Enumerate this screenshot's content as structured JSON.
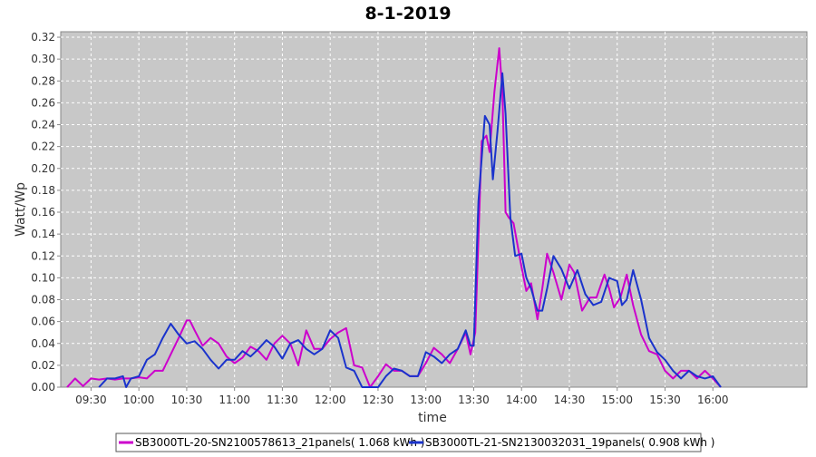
{
  "chart_data": {
    "type": "line",
    "title": "8-1-2019",
    "xlabel": "time",
    "ylabel": "Watt/Wp",
    "x_ticks": [
      "09:30",
      "10:00",
      "10:30",
      "11:00",
      "11:30",
      "12:00",
      "12:30",
      "13:00",
      "13:30",
      "14:00",
      "14:30",
      "15:00",
      "15:30",
      "16:00"
    ],
    "y_ticks": [
      "0.00",
      "0.02",
      "0.04",
      "0.06",
      "0.08",
      "0.10",
      "0.12",
      "0.14",
      "0.16",
      "0.18",
      "0.20",
      "0.22",
      "0.24",
      "0.26",
      "0.28",
      "0.30",
      "0.32"
    ],
    "ylim": [
      0,
      0.325
    ],
    "xlim": [
      "09:11",
      "16:59"
    ],
    "grid": true,
    "legend_position": "bottom",
    "background_color": "#c8c8c8",
    "series": [
      {
        "name": "SB3000TL-20-SN2100578613_21panels( 1.068 kWh )",
        "color": "#cc00cc",
        "points": [
          [
            "09:15",
            0.0
          ],
          [
            "09:20",
            0.008
          ],
          [
            "09:25",
            0.001
          ],
          [
            "09:30",
            0.008
          ],
          [
            "09:35",
            0.007
          ],
          [
            "09:40",
            0.008
          ],
          [
            "09:45",
            0.007
          ],
          [
            "09:50",
            0.008
          ],
          [
            "09:55",
            0.008
          ],
          [
            "10:00",
            0.009
          ],
          [
            "10:05",
            0.008
          ],
          [
            "10:10",
            0.015
          ],
          [
            "10:15",
            0.015
          ],
          [
            "10:20",
            0.03
          ],
          [
            "10:25",
            0.045
          ],
          [
            "10:30",
            0.061
          ],
          [
            "10:32",
            0.061
          ],
          [
            "10:35",
            0.052
          ],
          [
            "10:40",
            0.038
          ],
          [
            "10:45",
            0.045
          ],
          [
            "10:50",
            0.04
          ],
          [
            "10:55",
            0.028
          ],
          [
            "11:00",
            0.022
          ],
          [
            "11:05",
            0.027
          ],
          [
            "11:10",
            0.037
          ],
          [
            "11:15",
            0.033
          ],
          [
            "11:20",
            0.025
          ],
          [
            "11:25",
            0.04
          ],
          [
            "11:30",
            0.047
          ],
          [
            "11:35",
            0.04
          ],
          [
            "11:40",
            0.02
          ],
          [
            "11:45",
            0.052
          ],
          [
            "11:50",
            0.035
          ],
          [
            "11:55",
            0.035
          ],
          [
            "12:00",
            0.044
          ],
          [
            "12:05",
            0.05
          ],
          [
            "12:10",
            0.054
          ],
          [
            "12:15",
            0.02
          ],
          [
            "12:20",
            0.018
          ],
          [
            "12:25",
            0.0
          ],
          [
            "12:30",
            0.01
          ],
          [
            "12:35",
            0.021
          ],
          [
            "12:40",
            0.015
          ],
          [
            "12:45",
            0.015
          ],
          [
            "12:50",
            0.01
          ],
          [
            "12:55",
            0.01
          ],
          [
            "13:00",
            0.022
          ],
          [
            "13:05",
            0.036
          ],
          [
            "13:10",
            0.03
          ],
          [
            "13:15",
            0.022
          ],
          [
            "13:20",
            0.035
          ],
          [
            "13:25",
            0.05
          ],
          [
            "13:28",
            0.03
          ],
          [
            "13:31",
            0.05
          ],
          [
            "13:35",
            0.225
          ],
          [
            "13:38",
            0.23
          ],
          [
            "13:40",
            0.215
          ],
          [
            "13:43",
            0.27
          ],
          [
            "13:46",
            0.31
          ],
          [
            "13:48",
            0.27
          ],
          [
            "13:50",
            0.16
          ],
          [
            "13:52",
            0.155
          ],
          [
            "13:55",
            0.15
          ],
          [
            "14:00",
            0.11
          ],
          [
            "14:03",
            0.088
          ],
          [
            "14:06",
            0.095
          ],
          [
            "14:10",
            0.062
          ],
          [
            "14:13",
            0.09
          ],
          [
            "14:16",
            0.122
          ],
          [
            "14:20",
            0.105
          ],
          [
            "14:25",
            0.08
          ],
          [
            "14:30",
            0.112
          ],
          [
            "14:33",
            0.105
          ],
          [
            "14:38",
            0.07
          ],
          [
            "14:43",
            0.082
          ],
          [
            "14:47",
            0.082
          ],
          [
            "14:52",
            0.103
          ],
          [
            "14:55",
            0.09
          ],
          [
            "14:58",
            0.073
          ],
          [
            "15:02",
            0.082
          ],
          [
            "15:06",
            0.103
          ],
          [
            "15:10",
            0.075
          ],
          [
            "15:15",
            0.048
          ],
          [
            "15:20",
            0.033
          ],
          [
            "15:25",
            0.03
          ],
          [
            "15:30",
            0.015
          ],
          [
            "15:35",
            0.008
          ],
          [
            "15:40",
            0.015
          ],
          [
            "15:45",
            0.015
          ],
          [
            "15:50",
            0.008
          ],
          [
            "15:55",
            0.015
          ],
          [
            "16:00",
            0.008
          ],
          [
            "16:05",
            0.0
          ]
        ]
      },
      {
        "name": "SB3000TL-21-SN2130032031_19panels( 0.908 kWh )",
        "color": "#1a33cc",
        "points": [
          [
            "09:35",
            0.0
          ],
          [
            "09:40",
            0.008
          ],
          [
            "09:45",
            0.008
          ],
          [
            "09:50",
            0.01
          ],
          [
            "09:52",
            0.0
          ],
          [
            "09:55",
            0.008
          ],
          [
            "10:00",
            0.01
          ],
          [
            "10:05",
            0.025
          ],
          [
            "10:10",
            0.03
          ],
          [
            "10:15",
            0.045
          ],
          [
            "10:20",
            0.058
          ],
          [
            "10:25",
            0.048
          ],
          [
            "10:30",
            0.04
          ],
          [
            "10:35",
            0.042
          ],
          [
            "10:40",
            0.035
          ],
          [
            "10:45",
            0.025
          ],
          [
            "10:50",
            0.017
          ],
          [
            "10:55",
            0.025
          ],
          [
            "11:00",
            0.025
          ],
          [
            "11:05",
            0.033
          ],
          [
            "11:10",
            0.028
          ],
          [
            "11:15",
            0.035
          ],
          [
            "11:20",
            0.043
          ],
          [
            "11:25",
            0.037
          ],
          [
            "11:30",
            0.026
          ],
          [
            "11:35",
            0.04
          ],
          [
            "11:40",
            0.043
          ],
          [
            "11:45",
            0.035
          ],
          [
            "11:50",
            0.03
          ],
          [
            "11:55",
            0.035
          ],
          [
            "12:00",
            0.052
          ],
          [
            "12:05",
            0.045
          ],
          [
            "12:10",
            0.018
          ],
          [
            "12:15",
            0.015
          ],
          [
            "12:20",
            0.0
          ],
          [
            "12:30",
            0.0
          ],
          [
            "12:35",
            0.01
          ],
          [
            "12:40",
            0.017
          ],
          [
            "12:45",
            0.015
          ],
          [
            "12:50",
            0.01
          ],
          [
            "12:55",
            0.01
          ],
          [
            "13:00",
            0.032
          ],
          [
            "13:05",
            0.028
          ],
          [
            "13:10",
            0.022
          ],
          [
            "13:15",
            0.03
          ],
          [
            "13:20",
            0.035
          ],
          [
            "13:25",
            0.052
          ],
          [
            "13:28",
            0.038
          ],
          [
            "13:30",
            0.038
          ],
          [
            "13:33",
            0.17
          ],
          [
            "13:37",
            0.248
          ],
          [
            "13:40",
            0.24
          ],
          [
            "13:42",
            0.19
          ],
          [
            "13:45",
            0.235
          ],
          [
            "13:48",
            0.287
          ],
          [
            "13:50",
            0.25
          ],
          [
            "13:53",
            0.155
          ],
          [
            "13:56",
            0.12
          ],
          [
            "14:00",
            0.122
          ],
          [
            "14:03",
            0.1
          ],
          [
            "14:06",
            0.09
          ],
          [
            "14:10",
            0.07
          ],
          [
            "14:13",
            0.07
          ],
          [
            "14:16",
            0.09
          ],
          [
            "14:20",
            0.12
          ],
          [
            "14:25",
            0.108
          ],
          [
            "14:30",
            0.09
          ],
          [
            "14:35",
            0.107
          ],
          [
            "14:40",
            0.085
          ],
          [
            "14:45",
            0.075
          ],
          [
            "14:50",
            0.078
          ],
          [
            "14:55",
            0.1
          ],
          [
            "15:00",
            0.097
          ],
          [
            "15:03",
            0.075
          ],
          [
            "15:06",
            0.08
          ],
          [
            "15:10",
            0.107
          ],
          [
            "15:15",
            0.08
          ],
          [
            "15:20",
            0.045
          ],
          [
            "15:25",
            0.032
          ],
          [
            "15:30",
            0.025
          ],
          [
            "15:35",
            0.015
          ],
          [
            "15:40",
            0.008
          ],
          [
            "15:45",
            0.015
          ],
          [
            "15:50",
            0.01
          ],
          [
            "15:55",
            0.008
          ],
          [
            "16:00",
            0.01
          ],
          [
            "16:05",
            0.0
          ]
        ]
      }
    ]
  }
}
